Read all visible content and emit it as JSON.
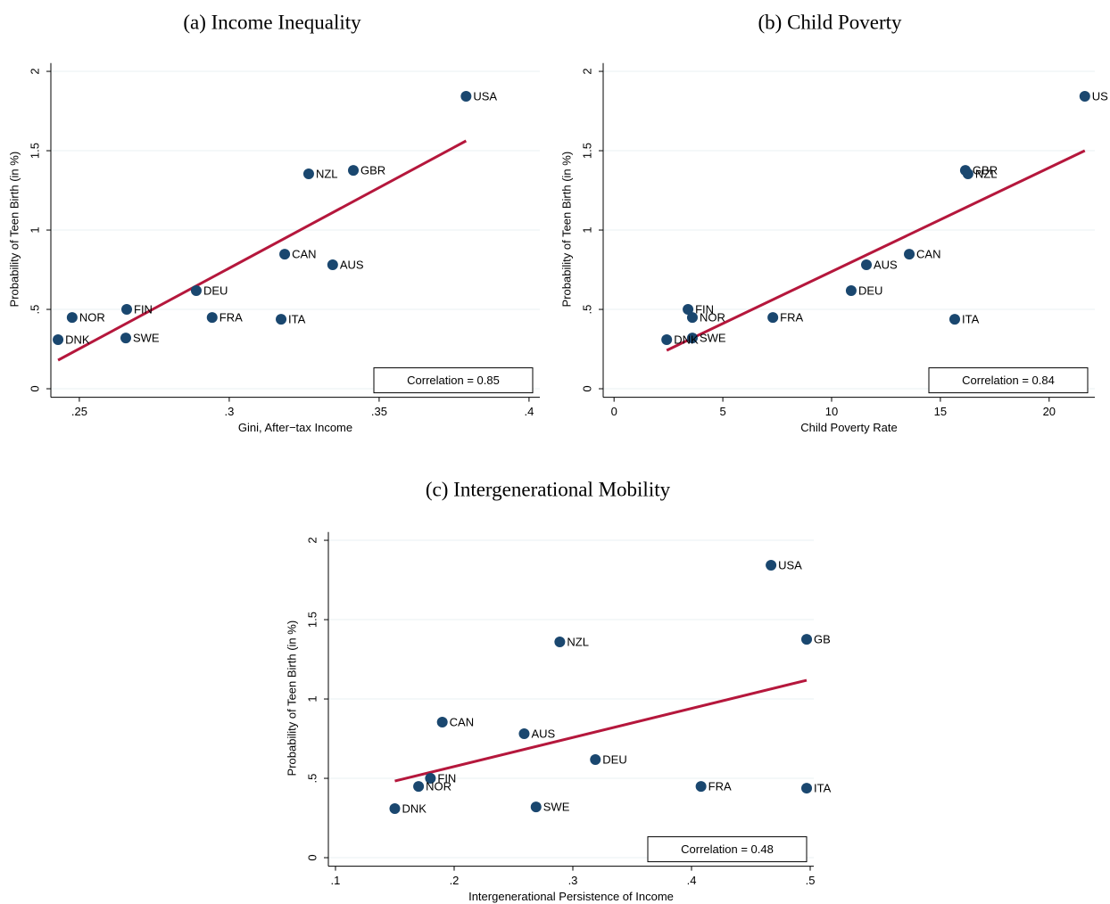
{
  "chart_data": [
    {
      "type": "scatter",
      "title": "(a) Income Inequality",
      "xlabel": "Gini, After−tax Income",
      "ylabel": "Probability of Teen Birth (in %)",
      "annotation": "Correlation = 0.85",
      "color": "#1a476f",
      "fit_color": "#b5173c",
      "grid": true,
      "labels": [
        "USA",
        "GBR",
        "NZL",
        "CAN",
        "AUS",
        "DEU",
        "FRA",
        "ITA",
        "FIN",
        "NOR",
        "SWE",
        "DNK"
      ],
      "x": [
        0.379,
        0.3414,
        0.3265,
        0.3185,
        0.3345,
        0.289,
        0.2943,
        0.3173,
        0.2658,
        0.2476,
        0.2655,
        0.2429
      ],
      "values": [
        1.843,
        1.376,
        1.354,
        0.848,
        0.781,
        0.618,
        0.449,
        0.438,
        0.5,
        0.449,
        0.32,
        0.309
      ],
      "fit_line": {
        "x": [
          0.2429,
          0.379
        ],
        "values": [
          0.18,
          1.562
        ]
      },
      "xlim": [
        0.2405,
        0.4036
      ],
      "ylim": [
        -0.02,
        2.03
      ],
      "xticks": [
        {
          "value": 0.25,
          "label": ".25"
        },
        {
          "value": 0.3,
          "label": ".3"
        },
        {
          "value": 0.35,
          "label": ".35"
        },
        {
          "value": 0.4,
          "label": ".4"
        }
      ],
      "yticks": [
        0,
        {
          "value": 0.5,
          "label": ".5"
        },
        1,
        {
          "value": 1.5,
          "label": "1.5"
        },
        2
      ]
    },
    {
      "type": "scatter",
      "title": "(b) Child Poverty",
      "xlabel": "Child Poverty Rate",
      "ylabel": "Probability of Teen Birth (in %)",
      "annotation": "Correlation = 0.84",
      "color": "#1a476f",
      "fit_color": "#b5173c",
      "grid": true,
      "labels": [
        "US",
        "GBR",
        "NZL",
        "CAN",
        "AUS",
        "DEU",
        "FRA",
        "ITA",
        "FIN",
        "NOR",
        "SWE",
        "DNK"
      ],
      "x": [
        21.64,
        16.15,
        16.27,
        13.57,
        11.6,
        10.9,
        7.3,
        15.66,
        3.4,
        3.6,
        3.6,
        2.42
      ],
      "values": [
        1.843,
        1.376,
        1.354,
        0.848,
        0.781,
        0.618,
        0.449,
        0.438,
        0.5,
        0.449,
        0.32,
        0.309
      ],
      "fit_line": {
        "x": [
          2.42,
          21.64
        ],
        "values": [
          0.242,
          1.5
        ]
      },
      "xlim": [
        -0.5,
        22.1
      ],
      "ylim": [
        -0.02,
        2.03
      ],
      "xticks": [
        0,
        5,
        10,
        15,
        20
      ],
      "yticks": [
        0,
        {
          "value": 0.5,
          "label": ".5"
        },
        1,
        {
          "value": 1.5,
          "label": "1.5"
        },
        2
      ]
    },
    {
      "type": "scatter",
      "title": "(c) Intergenerational Mobility",
      "xlabel": "Intergenerational Persistence of Income",
      "ylabel": "Probability of Teen Birth (in %)",
      "annotation": "Correlation = 0.48",
      "color": "#1a476f",
      "fit_color": "#b5173c",
      "grid": true,
      "labels": [
        "USA",
        "GB",
        "NZL",
        "CAN",
        "AUS",
        "DEU",
        "FIN",
        "NOR",
        "FRA",
        "ITA",
        "SWE",
        "DNK"
      ],
      "x": [
        0.467,
        0.497,
        0.289,
        0.19,
        0.259,
        0.319,
        0.18,
        0.17,
        0.408,
        0.497,
        0.269,
        0.15
      ],
      "values": [
        1.843,
        1.376,
        1.36,
        0.854,
        0.781,
        0.618,
        0.5,
        0.449,
        0.449,
        0.438,
        0.32,
        0.309
      ],
      "fit_line": {
        "x": [
          0.15,
          0.497
        ],
        "values": [
          0.483,
          1.118
        ]
      },
      "xlim": [
        0.094,
        0.503
      ],
      "ylim": [
        -0.02,
        2.03
      ],
      "xticks": [
        {
          "value": 0.1,
          "label": ".1"
        },
        {
          "value": 0.2,
          "label": ".2"
        },
        {
          "value": 0.3,
          "label": ".3"
        },
        {
          "value": 0.4,
          "label": ".4"
        },
        {
          "value": 0.5,
          "label": ".5"
        }
      ],
      "yticks": [
        0,
        {
          "value": 0.5,
          "label": ".5"
        },
        1,
        {
          "value": 1.5,
          "label": "1.5"
        },
        2
      ]
    }
  ]
}
